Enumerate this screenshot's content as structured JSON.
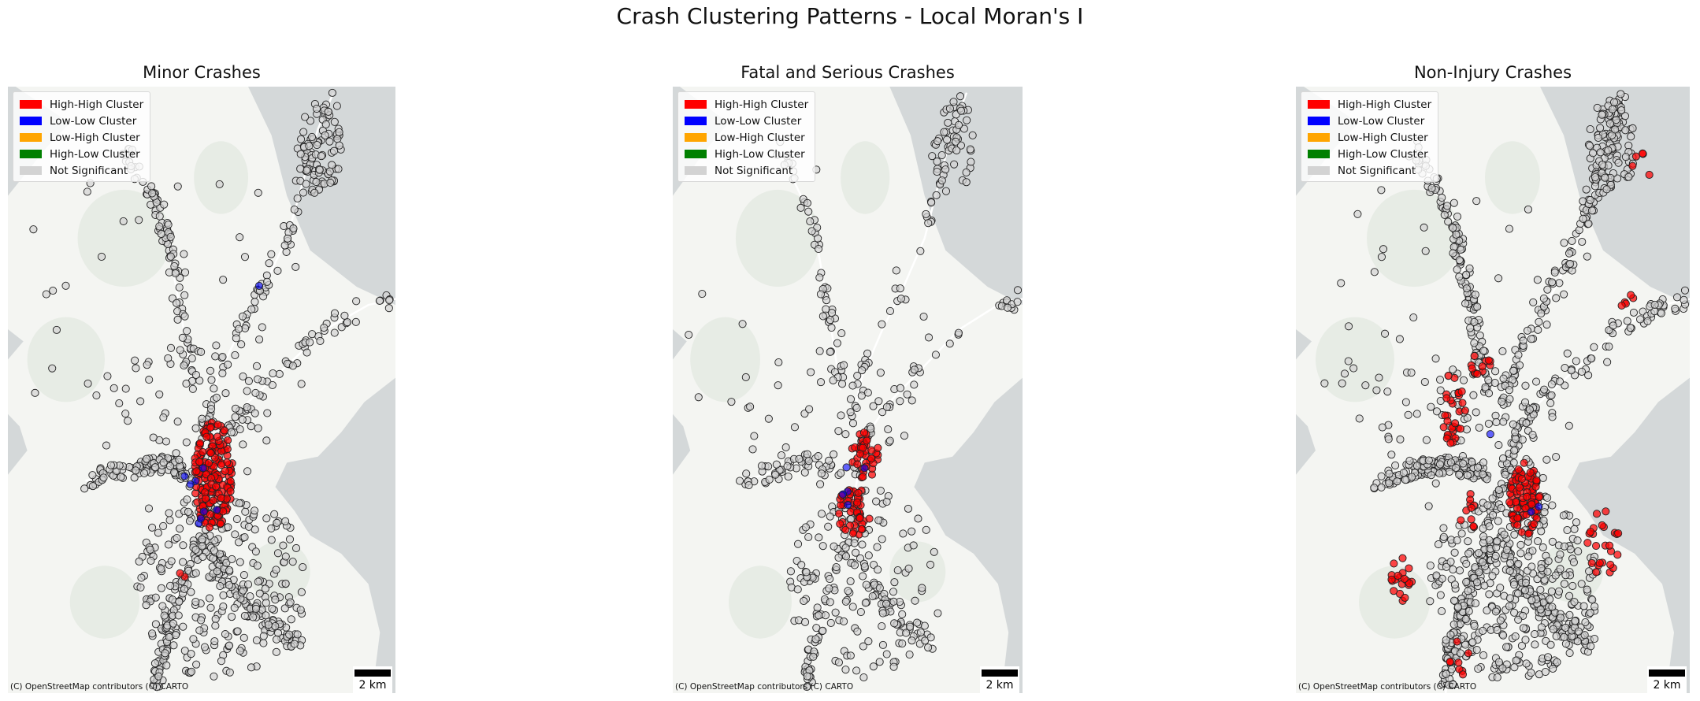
{
  "suptitle": "Crash Clustering Patterns - Local Moran's I",
  "legend": [
    {
      "label": "High-High Cluster",
      "color": "#ff0000"
    },
    {
      "label": "Low-Low Cluster",
      "color": "#0000ff"
    },
    {
      "label": "Low-High Cluster",
      "color": "#ffa500"
    },
    {
      "label": "High-Low Cluster",
      "color": "#008000"
    },
    {
      "label": "Not Significant",
      "color": "#d3d3d3"
    }
  ],
  "scalebar_label": "2 km",
  "attribution": "(C) OpenStreetMap contributors (C) CARTO",
  "chart_data": [
    {
      "type": "scatter",
      "title": "Minor Crashes",
      "categories": [
        "High-High Cluster",
        "Low-Low Cluster",
        "Low-High Cluster",
        "High-Low Cluster",
        "Not Significant"
      ],
      "category_colors": {
        "High-High Cluster": "#ff0000",
        "Low-Low Cluster": "#0000ff",
        "Low-High Cluster": "#ffa500",
        "High-Low Cluster": "#008000",
        "Not Significant": "#d3d3d3"
      },
      "basemap": "CARTO Positron (OpenStreetMap)",
      "legend_position": "top-left",
      "scalebar": "2 km",
      "grid": false,
      "axes_visible": false,
      "clusters_present": [
        "High-High Cluster",
        "Low-Low Cluster",
        "Not Significant"
      ],
      "pattern_note": "High-High cluster concentrated in the central area; scattered Low-Low points around it; most crashes Not Significant"
    },
    {
      "type": "scatter",
      "title": "Fatal and Serious Crashes",
      "categories": [
        "High-High Cluster",
        "Low-Low Cluster",
        "Low-High Cluster",
        "High-Low Cluster",
        "Not Significant"
      ],
      "category_colors": {
        "High-High Cluster": "#ff0000",
        "Low-Low Cluster": "#0000ff",
        "Low-High Cluster": "#ffa500",
        "High-Low Cluster": "#008000",
        "Not Significant": "#d3d3d3"
      },
      "basemap": "CARTO Positron (OpenStreetMap)",
      "legend_position": "top-left",
      "scalebar": "2 km",
      "grid": false,
      "axes_visible": false,
      "clusters_present": [
        "High-High Cluster",
        "Low-Low Cluster",
        "Not Significant"
      ],
      "pattern_note": "Two compact High-High clusters in the centre; few Low-Low points; sparse Not Significant points elsewhere"
    },
    {
      "type": "scatter",
      "title": "Non-Injury Crashes",
      "categories": [
        "High-High Cluster",
        "Low-Low Cluster",
        "Low-High Cluster",
        "High-Low Cluster",
        "Not Significant"
      ],
      "category_colors": {
        "High-High Cluster": "#ff0000",
        "Low-Low Cluster": "#0000ff",
        "Low-High Cluster": "#ffa500",
        "High-Low Cluster": "#008000",
        "Not Significant": "#d3d3d3"
      },
      "basemap": "CARTO Positron (OpenStreetMap)",
      "legend_position": "top-left",
      "scalebar": "2 km",
      "grid": false,
      "axes_visible": false,
      "clusters_present": [
        "High-High Cluster",
        "Low-Low Cluster",
        "Not Significant"
      ],
      "pattern_note": "Dense Not Significant network; High-High clusters in the centre, west, south-west, east and north-east fringes"
    }
  ]
}
